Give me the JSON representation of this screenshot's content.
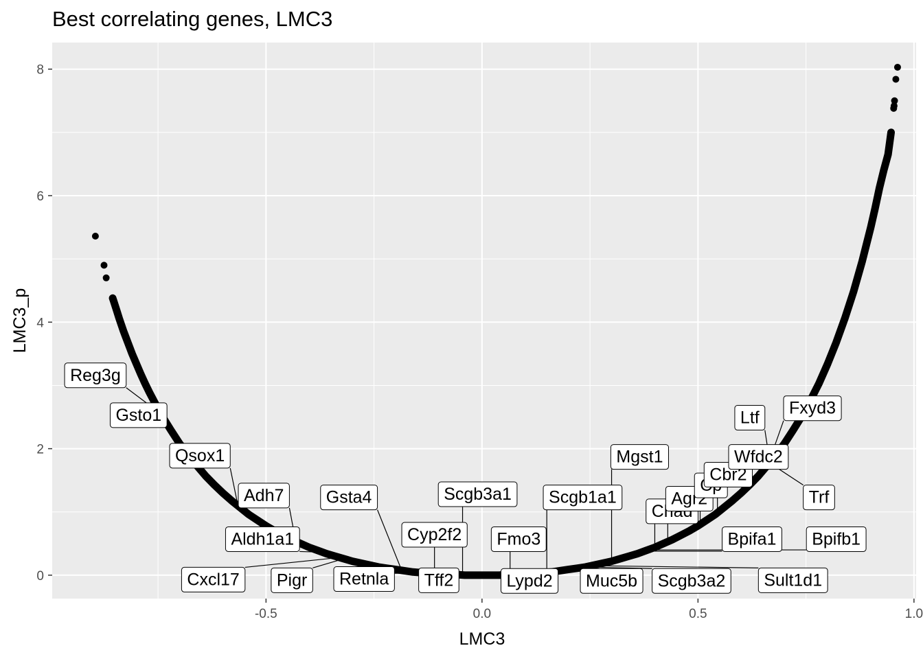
{
  "chart_data": {
    "type": "scatter",
    "title": "Best correlating genes, LMC3",
    "xlabel": "LMC3",
    "ylabel": "LMC3_p",
    "xlim": [
      -0.995,
      1.005
    ],
    "ylim": [
      -0.37,
      8.42
    ],
    "x_ticks": [
      -0.5,
      0.0,
      0.5,
      1.0
    ],
    "x_tick_labels": [
      "-0.5",
      "0.0",
      "0.5",
      "1.0"
    ],
    "y_ticks": [
      0,
      2,
      4,
      6,
      8
    ],
    "y_tick_labels": [
      "0",
      "2",
      "4",
      "6",
      "8"
    ],
    "grid": true,
    "point_color": "#000000",
    "panel_background": "#ebebeb",
    "points": [
      {
        "x": -0.895,
        "y": 5.36
      },
      {
        "x": -0.875,
        "y": 4.9
      },
      {
        "x": -0.87,
        "y": 4.7
      },
      {
        "x": -0.855,
        "y": 4.38
      },
      {
        "x": -0.853,
        "y": 4.34
      },
      {
        "x": -0.845,
        "y": 4.17
      },
      {
        "x": -0.84,
        "y": 4.06
      },
      {
        "x": -0.835,
        "y": 3.96
      },
      {
        "x": -0.83,
        "y": 3.86
      },
      {
        "x": -0.825,
        "y": 3.77
      },
      {
        "x": -0.82,
        "y": 3.68
      },
      {
        "x": -0.815,
        "y": 3.59
      },
      {
        "x": -0.81,
        "y": 3.5
      },
      {
        "x": -0.805,
        "y": 3.42
      },
      {
        "x": -0.8,
        "y": 3.34
      },
      {
        "x": -0.79,
        "y": 3.18
      },
      {
        "x": -0.78,
        "y": 3.03
      },
      {
        "x": -0.77,
        "y": 2.89
      },
      {
        "x": -0.76,
        "y": 2.76
      },
      {
        "x": -0.75,
        "y": 2.63
      },
      {
        "x": -0.74,
        "y": 2.51
      },
      {
        "x": -0.73,
        "y": 2.4
      },
      {
        "x": -0.72,
        "y": 2.29
      },
      {
        "x": -0.7,
        "y": 2.08
      },
      {
        "x": -0.68,
        "y": 1.9
      },
      {
        "x": -0.66,
        "y": 1.73
      },
      {
        "x": -0.64,
        "y": 1.57
      },
      {
        "x": -0.62,
        "y": 1.43
      },
      {
        "x": -0.6,
        "y": 1.3
      },
      {
        "x": -0.58,
        "y": 1.18
      },
      {
        "x": -0.56,
        "y": 1.07
      },
      {
        "x": -0.54,
        "y": 0.96
      },
      {
        "x": -0.52,
        "y": 0.87
      },
      {
        "x": -0.5,
        "y": 0.78
      },
      {
        "x": -0.48,
        "y": 0.7
      },
      {
        "x": -0.46,
        "y": 0.63
      },
      {
        "x": -0.44,
        "y": 0.56
      },
      {
        "x": -0.42,
        "y": 0.5
      },
      {
        "x": -0.4,
        "y": 0.44
      },
      {
        "x": -0.38,
        "y": 0.39
      },
      {
        "x": -0.36,
        "y": 0.34
      },
      {
        "x": -0.34,
        "y": 0.3
      },
      {
        "x": -0.32,
        "y": 0.26
      },
      {
        "x": -0.3,
        "y": 0.22
      },
      {
        "x": -0.28,
        "y": 0.19
      },
      {
        "x": -0.26,
        "y": 0.16
      },
      {
        "x": -0.24,
        "y": 0.13
      },
      {
        "x": -0.22,
        "y": 0.11
      },
      {
        "x": -0.2,
        "y": 0.09
      },
      {
        "x": -0.18,
        "y": 0.07
      },
      {
        "x": -0.16,
        "y": 0.05
      },
      {
        "x": -0.14,
        "y": 0.04
      },
      {
        "x": -0.12,
        "y": 0.03
      },
      {
        "x": -0.1,
        "y": 0.02
      },
      {
        "x": -0.08,
        "y": 0.01
      },
      {
        "x": -0.06,
        "y": 0.01
      },
      {
        "x": -0.04,
        "y": 0.0
      },
      {
        "x": -0.02,
        "y": 0.0
      },
      {
        "x": 0.0,
        "y": 0.0
      },
      {
        "x": 0.02,
        "y": 0.0
      },
      {
        "x": 0.04,
        "y": 0.0
      },
      {
        "x": 0.06,
        "y": 0.01
      },
      {
        "x": 0.08,
        "y": 0.01
      },
      {
        "x": 0.1,
        "y": 0.02
      },
      {
        "x": 0.12,
        "y": 0.03
      },
      {
        "x": 0.14,
        "y": 0.04
      },
      {
        "x": 0.16,
        "y": 0.05
      },
      {
        "x": 0.18,
        "y": 0.07
      },
      {
        "x": 0.2,
        "y": 0.09
      },
      {
        "x": 0.22,
        "y": 0.11
      },
      {
        "x": 0.24,
        "y": 0.13
      },
      {
        "x": 0.26,
        "y": 0.16
      },
      {
        "x": 0.28,
        "y": 0.19
      },
      {
        "x": 0.3,
        "y": 0.22
      },
      {
        "x": 0.32,
        "y": 0.26
      },
      {
        "x": 0.34,
        "y": 0.3
      },
      {
        "x": 0.36,
        "y": 0.34
      },
      {
        "x": 0.38,
        "y": 0.39
      },
      {
        "x": 0.4,
        "y": 0.44
      },
      {
        "x": 0.42,
        "y": 0.5
      },
      {
        "x": 0.44,
        "y": 0.56
      },
      {
        "x": 0.46,
        "y": 0.63
      },
      {
        "x": 0.48,
        "y": 0.7
      },
      {
        "x": 0.5,
        "y": 0.78
      },
      {
        "x": 0.52,
        "y": 0.87
      },
      {
        "x": 0.54,
        "y": 0.96
      },
      {
        "x": 0.56,
        "y": 1.07
      },
      {
        "x": 0.58,
        "y": 1.18
      },
      {
        "x": 0.6,
        "y": 1.3
      },
      {
        "x": 0.62,
        "y": 1.43
      },
      {
        "x": 0.64,
        "y": 1.57
      },
      {
        "x": 0.66,
        "y": 1.73
      },
      {
        "x": 0.68,
        "y": 1.9
      },
      {
        "x": 0.7,
        "y": 2.08
      },
      {
        "x": 0.72,
        "y": 2.29
      },
      {
        "x": 0.74,
        "y": 2.51
      },
      {
        "x": 0.76,
        "y": 2.76
      },
      {
        "x": 0.78,
        "y": 3.03
      },
      {
        "x": 0.8,
        "y": 3.34
      },
      {
        "x": 0.82,
        "y": 3.68
      },
      {
        "x": 0.84,
        "y": 4.06
      },
      {
        "x": 0.86,
        "y": 4.48
      },
      {
        "x": 0.88,
        "y": 4.96
      },
      {
        "x": 0.9,
        "y": 5.5
      },
      {
        "x": 0.91,
        "y": 5.8
      },
      {
        "x": 0.92,
        "y": 6.12
      },
      {
        "x": 0.93,
        "y": 6.4
      },
      {
        "x": 0.94,
        "y": 6.65
      },
      {
        "x": 0.945,
        "y": 6.9
      },
      {
        "x": 0.947,
        "y": 7.0
      },
      {
        "x": 0.953,
        "y": 7.38
      },
      {
        "x": 0.954,
        "y": 7.42
      },
      {
        "x": 0.955,
        "y": 7.5
      },
      {
        "x": 0.958,
        "y": 7.84
      },
      {
        "x": 0.962,
        "y": 8.03
      }
    ],
    "labels": [
      {
        "text": "Reg3g",
        "x": -0.745,
        "y": 2.56,
        "lx": -0.895,
        "ly": 3.17
      },
      {
        "text": "Gsto1",
        "x": -0.715,
        "y": 2.29,
        "lx": -0.795,
        "ly": 2.54
      },
      {
        "text": "Qsox1",
        "x": -0.565,
        "y": 1.1,
        "lx": -0.653,
        "ly": 1.9
      },
      {
        "x": -0.433,
        "y": 0.6,
        "text": "Adh7",
        "lx": -0.505,
        "ly": 1.27
      },
      {
        "text": "Gsta4",
        "x": -0.185,
        "y": 0.06,
        "lx": -0.308,
        "ly": 1.24
      },
      {
        "text": "Aldh1a1",
        "x": -0.345,
        "y": 0.36,
        "lx": -0.508,
        "ly": 0.58
      },
      {
        "text": "Cxcl17",
        "x": -0.315,
        "y": 0.29,
        "lx": -0.622,
        "ly": -0.06
      },
      {
        "text": "Pigr",
        "x": -0.31,
        "y": 0.28,
        "lx": -0.44,
        "ly": -0.07
      },
      {
        "text": "Retnla",
        "x": -0.125,
        "y": 0.03,
        "lx": -0.273,
        "ly": -0.05
      },
      {
        "text": "Cyp2f2",
        "x": -0.11,
        "y": 0.02,
        "lx": -0.11,
        "ly": 0.65
      },
      {
        "text": "Tff2",
        "x": -0.045,
        "y": 0.0,
        "lx": -0.1,
        "ly": -0.07
      },
      {
        "text": "Scgb3a1",
        "x": -0.045,
        "y": 0.0,
        "lx": -0.01,
        "ly": 1.29
      },
      {
        "text": "Fmo3",
        "x": 0.065,
        "y": 0.01,
        "lx": 0.085,
        "ly": 0.58
      },
      {
        "text": "Lypd2",
        "x": 0.04,
        "y": 0.0,
        "lx": 0.11,
        "ly": -0.08
      },
      {
        "text": "Scgb1a1",
        "x": 0.15,
        "y": 0.05,
        "lx": 0.233,
        "ly": 1.24
      },
      {
        "text": "Muc5b",
        "x": 0.245,
        "y": 0.14,
        "lx": 0.3,
        "ly": -0.08
      },
      {
        "text": "Scgb3a2",
        "x": 0.24,
        "y": 0.13,
        "lx": 0.485,
        "ly": -0.08
      },
      {
        "text": "Sult1d1",
        "x": 0.255,
        "y": 0.15,
        "lx": 0.72,
        "ly": -0.07
      },
      {
        "text": "Mgst1",
        "x": 0.3,
        "y": 0.22,
        "lx": 0.365,
        "ly": 1.88
      },
      {
        "text": "Chad",
        "x": 0.4,
        "y": 0.44,
        "lx": 0.44,
        "ly": 1.02
      },
      {
        "text": "Bpifa1",
        "x": 0.36,
        "y": 0.38,
        "lx": 0.625,
        "ly": 0.58
      },
      {
        "text": "Bpifb1",
        "x": 0.37,
        "y": 0.4,
        "lx": 0.82,
        "ly": 0.58
      },
      {
        "text": "Agr2",
        "x": 0.43,
        "y": 0.52,
        "lx": 0.48,
        "ly": 1.22
      },
      {
        "text": "Cp",
        "x": 0.505,
        "y": 0.82,
        "lx": 0.53,
        "ly": 1.43
      },
      {
        "text": "Cbr2",
        "x": 0.545,
        "y": 1.03,
        "lx": 0.57,
        "ly": 1.6
      },
      {
        "text": "Wfdc2",
        "x": 0.66,
        "y": 1.8,
        "lx": 0.64,
        "ly": 1.88
      },
      {
        "text": "Trf",
        "x": 0.66,
        "y": 1.8,
        "lx": 0.78,
        "ly": 1.24
      },
      {
        "text": "Ltf",
        "x": 0.665,
        "y": 1.84,
        "lx": 0.62,
        "ly": 2.5
      },
      {
        "text": "Fxyd3",
        "x": 0.67,
        "y": 1.9,
        "lx": 0.765,
        "ly": 2.65
      }
    ]
  }
}
